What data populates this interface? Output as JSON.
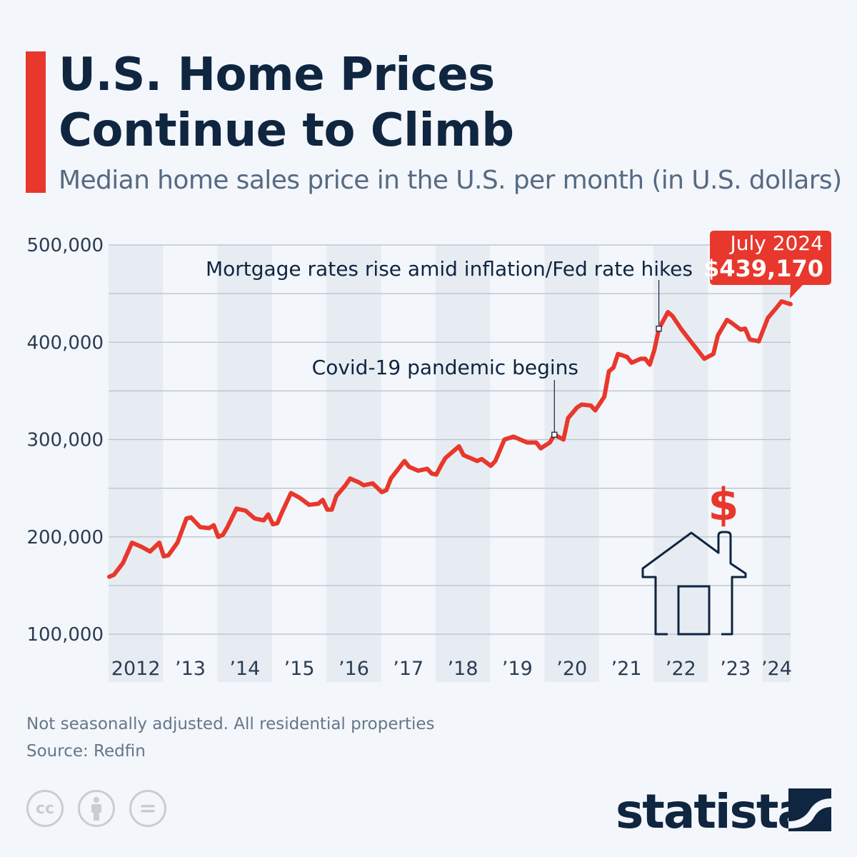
{
  "header": {
    "title_line1": "U.S. Home Prices",
    "title_line2": "Continue to Climb",
    "subtitle": "Median home sales price in the U.S. per month (in U.S. dollars)"
  },
  "chart_data": {
    "type": "line",
    "title": "U.S. Home Prices Continue to Climb",
    "subtitle": "Median home sales price in the U.S. per month (in U.S. dollars)",
    "ylim": [
      100000,
      500000
    ],
    "yticks": [
      "100,000",
      "200,000",
      "300,000",
      "400,000",
      "500,000"
    ],
    "xticks": [
      "2012",
      "’13",
      "’14",
      "’15",
      "’16",
      "’17",
      "’18",
      "’19",
      "’20",
      "’21",
      "’22",
      "’23",
      "’24"
    ],
    "grid": true,
    "line_color": "#e8372c",
    "points": [
      [
        "2012-01",
        159000
      ],
      [
        "2012-02",
        161000
      ],
      [
        "2012-04",
        173000
      ],
      [
        "2012-06",
        194000
      ],
      [
        "2012-08",
        190000
      ],
      [
        "2012-10",
        185000
      ],
      [
        "2012-12",
        194000
      ],
      [
        "2013-01",
        180000
      ],
      [
        "2013-02",
        181000
      ],
      [
        "2013-04",
        194000
      ],
      [
        "2013-06",
        219000
      ],
      [
        "2013-07",
        220000
      ],
      [
        "2013-09",
        210000
      ],
      [
        "2013-11",
        209000
      ],
      [
        "2013-12",
        212000
      ],
      [
        "2014-01",
        200000
      ],
      [
        "2014-02",
        202000
      ],
      [
        "2014-03",
        210000
      ],
      [
        "2014-05",
        229000
      ],
      [
        "2014-07",
        227000
      ],
      [
        "2014-09",
        219000
      ],
      [
        "2014-11",
        217000
      ],
      [
        "2014-12",
        223000
      ],
      [
        "2015-01",
        213000
      ],
      [
        "2015-02",
        214000
      ],
      [
        "2015-03",
        225000
      ],
      [
        "2015-05",
        245000
      ],
      [
        "2015-07",
        240000
      ],
      [
        "2015-09",
        233000
      ],
      [
        "2015-11",
        234000
      ],
      [
        "2015-12",
        238000
      ],
      [
        "2016-01",
        228000
      ],
      [
        "2016-02",
        228000
      ],
      [
        "2016-03",
        242000
      ],
      [
        "2016-05",
        253000
      ],
      [
        "2016-06",
        260000
      ],
      [
        "2016-08",
        256000
      ],
      [
        "2016-09",
        253000
      ],
      [
        "2016-11",
        255000
      ],
      [
        "2017-01",
        246000
      ],
      [
        "2017-02",
        248000
      ],
      [
        "2017-03",
        260000
      ],
      [
        "2017-06",
        278000
      ],
      [
        "2017-07",
        272000
      ],
      [
        "2017-09",
        268000
      ],
      [
        "2017-11",
        270000
      ],
      [
        "2017-12",
        265000
      ],
      [
        "2018-01",
        264000
      ],
      [
        "2018-02",
        273000
      ],
      [
        "2018-03",
        281000
      ],
      [
        "2018-06",
        293000
      ],
      [
        "2018-07",
        284000
      ],
      [
        "2018-10",
        278000
      ],
      [
        "2018-11",
        280000
      ],
      [
        "2019-01",
        273000
      ],
      [
        "2019-02",
        278000
      ],
      [
        "2019-04",
        300000
      ],
      [
        "2019-06",
        303000
      ],
      [
        "2019-09",
        297000
      ],
      [
        "2019-11",
        297000
      ],
      [
        "2019-12",
        291000
      ],
      [
        "2020-02",
        297000
      ],
      [
        "2020-03",
        305000
      ],
      [
        "2020-05",
        300000
      ],
      [
        "2020-06",
        322000
      ],
      [
        "2020-08",
        333000
      ],
      [
        "2020-09",
        336000
      ],
      [
        "2020-11",
        335000
      ],
      [
        "2020-12",
        330000
      ],
      [
        "2021-02",
        344000
      ],
      [
        "2021-03",
        370000
      ],
      [
        "2021-04",
        374000
      ],
      [
        "2021-05",
        388000
      ],
      [
        "2021-07",
        385000
      ],
      [
        "2021-08",
        379000
      ],
      [
        "2021-10",
        383000
      ],
      [
        "2021-11",
        383000
      ],
      [
        "2021-12",
        377000
      ],
      [
        "2022-01",
        392000
      ],
      [
        "2022-02",
        414000
      ],
      [
        "2022-04",
        431000
      ],
      [
        "2022-05",
        427000
      ],
      [
        "2022-07",
        413000
      ],
      [
        "2022-09",
        401000
      ],
      [
        "2022-12",
        383000
      ],
      [
        "2023-02",
        388000
      ],
      [
        "2023-03",
        407000
      ],
      [
        "2023-05",
        423000
      ],
      [
        "2023-06",
        420000
      ],
      [
        "2023-08",
        413000
      ],
      [
        "2023-09",
        414000
      ],
      [
        "2023-10",
        403000
      ],
      [
        "2023-12",
        401000
      ],
      [
        "2024-02",
        425000
      ],
      [
        "2024-04",
        436000
      ],
      [
        "2024-05",
        442000
      ],
      [
        "2024-07",
        439170
      ]
    ],
    "annotations": [
      {
        "date": "2020-03",
        "value": 305000,
        "text": "Covid-19 pandemic begins"
      },
      {
        "date": "2022-02",
        "value": 414000,
        "text": "Mortgage rates rise amid inflation/Fed rate hikes"
      }
    ],
    "callout": {
      "date": "July 2024",
      "value": "$439,170"
    }
  },
  "footer": {
    "note": "Not seasonally adjusted. All residential properties",
    "source": "Source: Redfin",
    "brand": "statista",
    "license_icons": [
      "cc-icon",
      "attribution-icon",
      "no-derivatives-icon"
    ],
    "cc_label": "cc",
    "nd_label": "="
  },
  "illustration": {
    "dollar": "$"
  }
}
